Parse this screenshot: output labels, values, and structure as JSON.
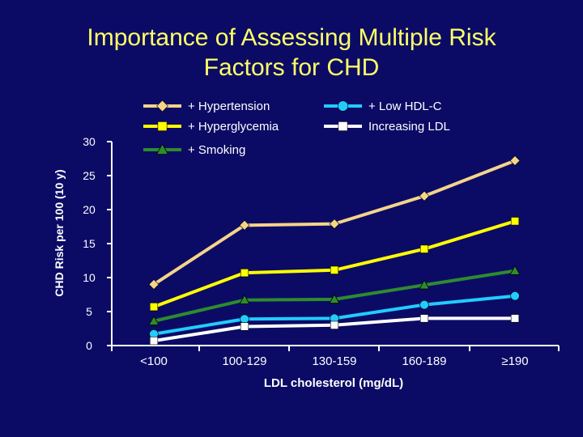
{
  "title_lines": [
    "Importance of Assessing Multiple Risk",
    "Factors for CHD"
  ],
  "colors": {
    "background": "#0b0b66",
    "title": "#ffff66",
    "text": "#ffffff",
    "axis": "#ffffff"
  },
  "chart_data": {
    "type": "line",
    "title": "Importance of Assessing Multiple Risk Factors for CHD",
    "xlabel": "LDL cholesterol (mg/dL)",
    "ylabel": "CHD Risk per 100 (10 y)",
    "categories": [
      "<100",
      "100-129",
      "130-159",
      "160-189",
      "≥190"
    ],
    "ylim": [
      0,
      30
    ],
    "yticks": [
      0,
      5,
      10,
      15,
      20,
      25,
      30
    ],
    "grid": false,
    "legend_position": "top",
    "series": [
      {
        "name": "+ Hypertension",
        "color": "#f5d48a",
        "marker": "diamond",
        "values": [
          9.0,
          17.7,
          17.9,
          22.0,
          27.2
        ]
      },
      {
        "name": "+ Hyperglycemia",
        "color": "#ffff00",
        "marker": "square",
        "values": [
          5.7,
          10.7,
          11.1,
          14.2,
          18.3
        ]
      },
      {
        "name": "+ Smoking",
        "color": "#2e8b2e",
        "marker": "triangle",
        "values": [
          3.6,
          6.7,
          6.8,
          8.9,
          11.0
        ]
      },
      {
        "name": "+ Low HDL-C",
        "color": "#22ccff",
        "marker": "circle",
        "values": [
          1.7,
          3.9,
          4.0,
          6.0,
          7.3
        ]
      },
      {
        "name": "Increasing LDL",
        "color": "#ffffff",
        "marker": "square",
        "values": [
          0.7,
          2.8,
          3.0,
          4.0,
          4.0
        ]
      }
    ]
  }
}
